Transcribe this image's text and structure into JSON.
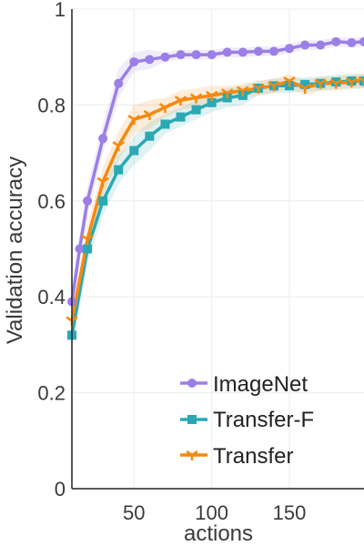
{
  "chart_data": {
    "type": "line",
    "xlabel": "actions",
    "ylabel": "Validation accuracy",
    "xlim": [
      10,
      198
    ],
    "ylim": [
      0,
      1
    ],
    "xticks": [
      50,
      100,
      150
    ],
    "yticks": [
      0,
      0.2,
      0.4,
      0.6,
      0.8,
      1
    ],
    "ytick_labels": [
      "0",
      "0.2",
      "0.4",
      "0.6",
      "0.8",
      "1"
    ],
    "grid": true,
    "legend_position": "bottom-right",
    "series": [
      {
        "name": "ImageNet",
        "color": "#9b7fe6",
        "marker": "circle",
        "x": [
          10,
          15,
          20,
          30,
          40,
          50,
          60,
          70,
          80,
          90,
          100,
          110,
          120,
          130,
          140,
          150,
          160,
          170,
          180,
          190,
          198
        ],
        "y": [
          0.39,
          0.5,
          0.6,
          0.73,
          0.845,
          0.89,
          0.895,
          0.9,
          0.905,
          0.905,
          0.905,
          0.91,
          0.91,
          0.912,
          0.912,
          0.918,
          0.925,
          0.925,
          0.932,
          0.93,
          0.932
        ],
        "band": [
          0.03,
          0.03,
          0.03,
          0.03,
          0.03,
          0.02,
          0.02,
          0.01,
          0.01,
          0.01,
          0.01,
          0.01,
          0.01,
          0.01,
          0.01,
          0.01,
          0.01,
          0.01,
          0.01,
          0.01,
          0.01
        ]
      },
      {
        "name": "Transfer-F",
        "color": "#2aa9b3",
        "marker": "square",
        "x": [
          10,
          20,
          30,
          40,
          50,
          60,
          70,
          80,
          90,
          100,
          110,
          120,
          130,
          140,
          150,
          160,
          170,
          180,
          190,
          198
        ],
        "y": [
          0.32,
          0.5,
          0.6,
          0.665,
          0.705,
          0.735,
          0.76,
          0.775,
          0.79,
          0.805,
          0.815,
          0.82,
          0.835,
          0.84,
          0.84,
          0.843,
          0.845,
          0.848,
          0.85,
          0.85
        ],
        "band": [
          0.03,
          0.03,
          0.03,
          0.03,
          0.03,
          0.03,
          0.02,
          0.02,
          0.02,
          0.02,
          0.02,
          0.02,
          0.015,
          0.015,
          0.015,
          0.015,
          0.015,
          0.015,
          0.015,
          0.015
        ]
      },
      {
        "name": "Transfer",
        "color": "#f5890f",
        "marker": "tri_down",
        "x": [
          10,
          20,
          30,
          40,
          50,
          60,
          70,
          80,
          90,
          100,
          110,
          120,
          130,
          140,
          150,
          160,
          170,
          180,
          190,
          198
        ],
        "y": [
          0.35,
          0.52,
          0.64,
          0.715,
          0.77,
          0.78,
          0.795,
          0.81,
          0.815,
          0.82,
          0.825,
          0.83,
          0.835,
          0.84,
          0.85,
          0.835,
          0.845,
          0.845,
          0.848,
          0.85
        ],
        "band": [
          0.03,
          0.03,
          0.03,
          0.03,
          0.03,
          0.03,
          0.02,
          0.02,
          0.02,
          0.02,
          0.015,
          0.015,
          0.015,
          0.015,
          0.015,
          0.015,
          0.015,
          0.015,
          0.015,
          0.015
        ]
      }
    ]
  }
}
